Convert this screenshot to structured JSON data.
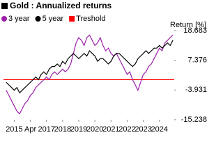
{
  "chart_data": {
    "type": "line",
    "title": "Gold : Annualized returns",
    "y_axis_label": "Return [%]",
    "x": [
      0,
      2,
      4,
      6,
      8,
      10,
      12,
      14,
      16,
      18,
      20,
      22,
      24,
      26,
      28,
      30,
      32,
      34,
      36,
      38,
      40,
      42,
      44,
      46,
      48,
      50,
      52,
      54,
      56,
      58,
      60,
      62,
      64,
      66,
      68,
      70,
      72,
      74,
      76,
      78,
      80,
      82,
      84,
      86,
      88,
      90,
      92,
      94,
      96,
      98,
      100,
      102,
      104,
      106,
      108,
      110,
      112,
      114,
      116,
      118,
      120,
      122,
      124
    ],
    "xlim": [
      -2,
      125
    ],
    "xticks": [
      {
        "value": 6,
        "label": "2015"
      },
      {
        "value": 18,
        "label": "Apr"
      },
      {
        "value": 30,
        "label": "2017"
      },
      {
        "value": 42,
        "label": "2018"
      },
      {
        "value": 54,
        "label": "2019"
      },
      {
        "value": 66,
        "label": "2020"
      },
      {
        "value": 78,
        "label": "2021"
      },
      {
        "value": 90,
        "label": "2022"
      },
      {
        "value": 102,
        "label": "2023"
      },
      {
        "value": 114,
        "label": "2024"
      }
    ],
    "ylim": [
      -15.238,
      18.683
    ],
    "yticks": [
      18.683,
      7.376,
      -3.931,
      -15.238
    ],
    "series": [
      {
        "name": "3 year",
        "color": "#9b1fa8",
        "values": [
          -4,
          -6,
          -8,
          -10,
          -12,
          -13,
          -11,
          -9,
          -8,
          -6,
          -5,
          -3,
          -2,
          -1,
          0,
          1,
          0,
          2,
          3,
          2,
          3,
          4,
          3,
          4,
          6,
          10,
          14,
          16,
          15,
          13,
          16,
          17,
          15,
          13,
          14,
          16,
          13,
          11,
          12,
          10,
          9,
          10,
          8,
          6,
          4,
          2,
          3,
          0,
          -2,
          -4,
          -1,
          2,
          3,
          5,
          6,
          8,
          10,
          12,
          11,
          14,
          15,
          16,
          17
        ]
      },
      {
        "name": "5 year",
        "color": "#000000",
        "values": [
          -1,
          -2,
          -3,
          -4,
          -3,
          -5,
          -4,
          -3,
          -2,
          -1,
          0,
          1,
          0,
          2,
          3,
          2,
          4,
          5,
          5,
          6,
          5,
          7,
          6,
          8,
          9,
          10,
          9,
          8,
          9,
          10,
          9,
          11,
          10,
          9,
          7,
          8,
          8,
          7,
          6,
          7,
          9,
          10,
          10,
          9,
          8,
          7,
          6,
          5,
          6,
          8,
          9,
          10,
          11,
          10,
          11,
          12,
          12,
          13,
          12,
          13,
          14,
          13,
          15
        ]
      }
    ],
    "threshold": {
      "name": "Treshold",
      "color": "#ff0000",
      "value": 0
    }
  }
}
